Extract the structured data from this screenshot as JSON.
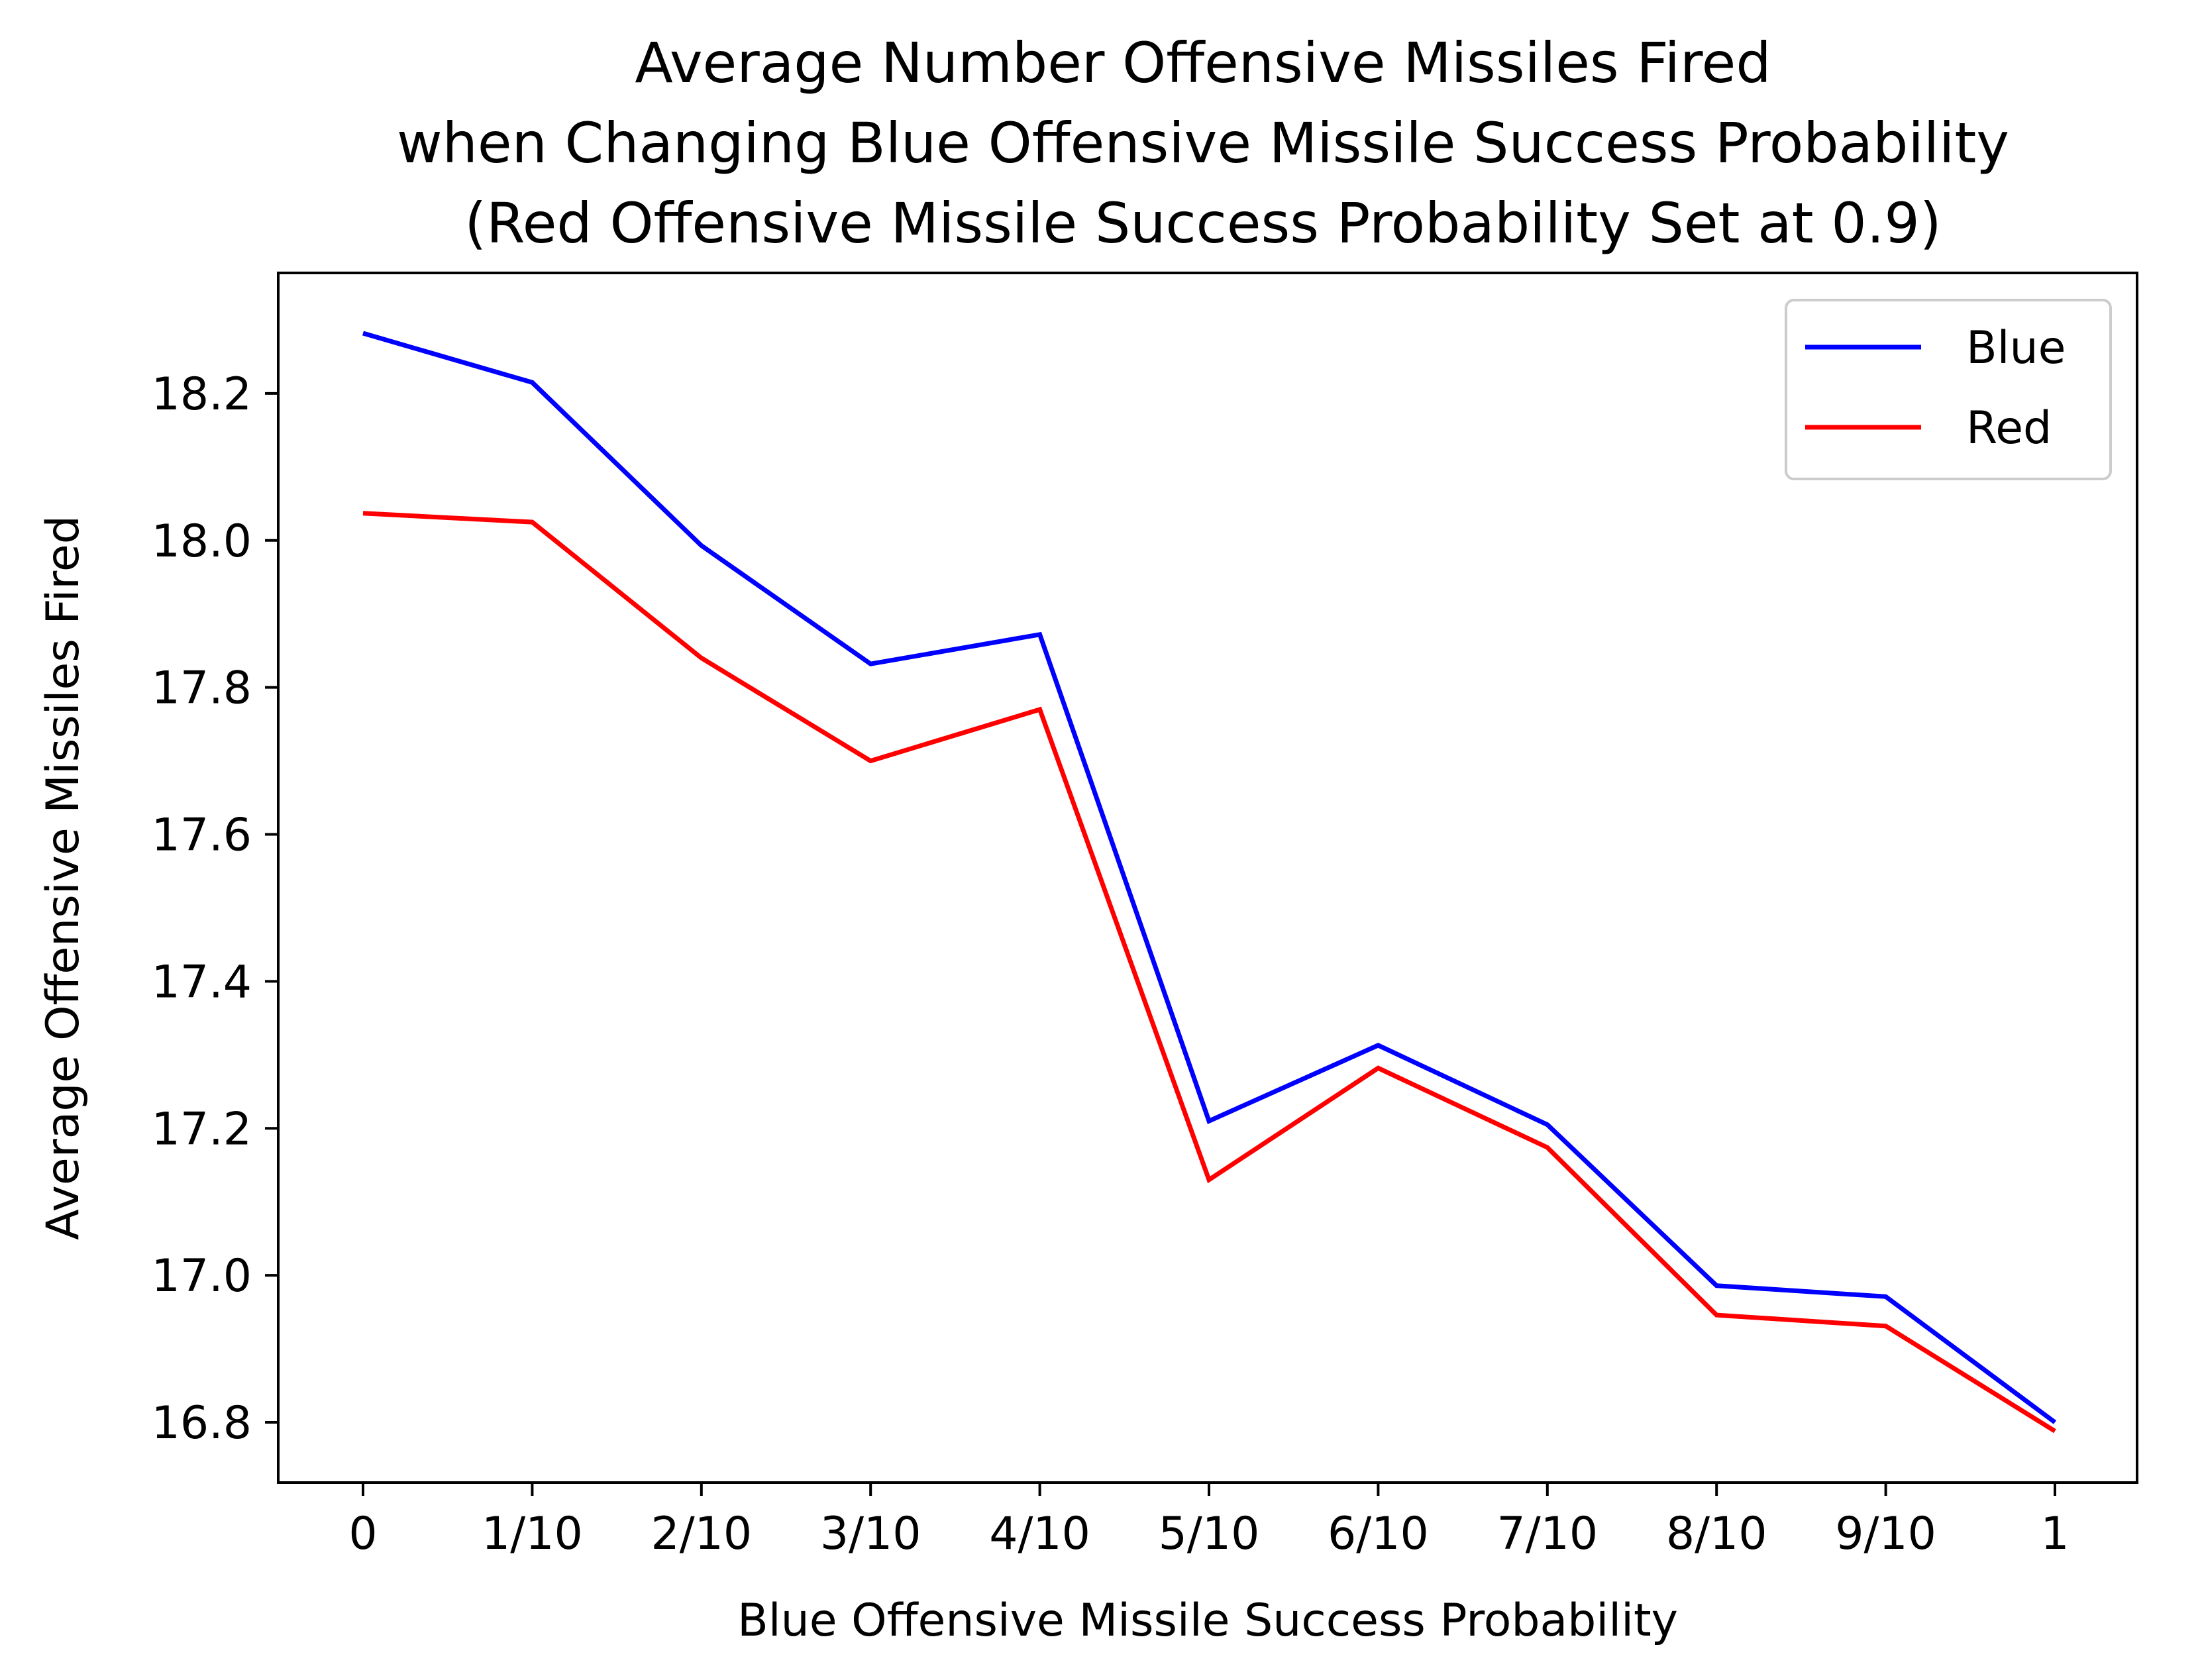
{
  "chart_data": {
    "type": "line",
    "title_lines": [
      "Average Number Offensive Missiles Fired",
      "when Changing Blue Offensive Missile Success Probability",
      "(Red Offensive Missile Success Probability Set at 0.9)"
    ],
    "xlabel": "Blue Offensive Missile Success Probability",
    "ylabel": "Average Offensive Missiles Fired",
    "categories": [
      "0",
      "1/10",
      "2/10",
      "3/10",
      "4/10",
      "5/10",
      "6/10",
      "7/10",
      "8/10",
      "9/10",
      "1"
    ],
    "x": [
      0,
      0.1,
      0.2,
      0.3,
      0.4,
      0.5,
      0.6,
      0.7,
      0.8,
      0.9,
      1.0
    ],
    "series": [
      {
        "name": "Blue",
        "color": "#0000ff",
        "values": [
          18.282,
          18.215,
          17.993,
          17.832,
          17.872,
          17.21,
          17.313,
          17.205,
          16.986,
          16.971,
          16.8
        ]
      },
      {
        "name": "Red",
        "color": "#ff0000",
        "values": [
          18.037,
          18.025,
          17.84,
          17.7,
          17.77,
          17.13,
          17.282,
          17.174,
          16.946,
          16.931,
          16.788
        ]
      }
    ],
    "ylim": [
      16.718,
      18.364
    ],
    "yticks": [
      16.8,
      17.0,
      17.2,
      17.4,
      17.6,
      17.8,
      18.0,
      18.2
    ],
    "ytick_labels": [
      "16.8",
      "17.0",
      "17.2",
      "17.4",
      "17.6",
      "17.8",
      "18.0",
      "18.2"
    ],
    "grid": false,
    "legend_position": "upper right"
  }
}
